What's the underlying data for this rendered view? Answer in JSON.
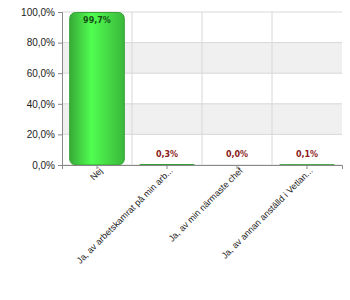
{
  "chart_data": {
    "type": "bar",
    "categories": [
      "Nej",
      "Ja, av arbetskamrat på min arb...",
      "Ja, av min närmaste chef",
      "Ja, av annan anställd i Vetlan..."
    ],
    "values": [
      99.7,
      0.3,
      0.0,
      0.1
    ],
    "value_labels": [
      "99,7%",
      "0,3%",
      "0,0%",
      "0,1%"
    ],
    "data_labels": true,
    "color": "#44d444",
    "ylim": [
      0,
      100
    ],
    "yticks": [
      {
        "value": 0,
        "label": "0,0%"
      },
      {
        "value": 20,
        "label": "20,0%"
      },
      {
        "value": 40,
        "label": "40,0%"
      },
      {
        "value": 60,
        "label": "60,0%"
      },
      {
        "value": 80,
        "label": "80,0%"
      },
      {
        "value": 100,
        "label": "100,0%"
      }
    ],
    "grid": true
  }
}
